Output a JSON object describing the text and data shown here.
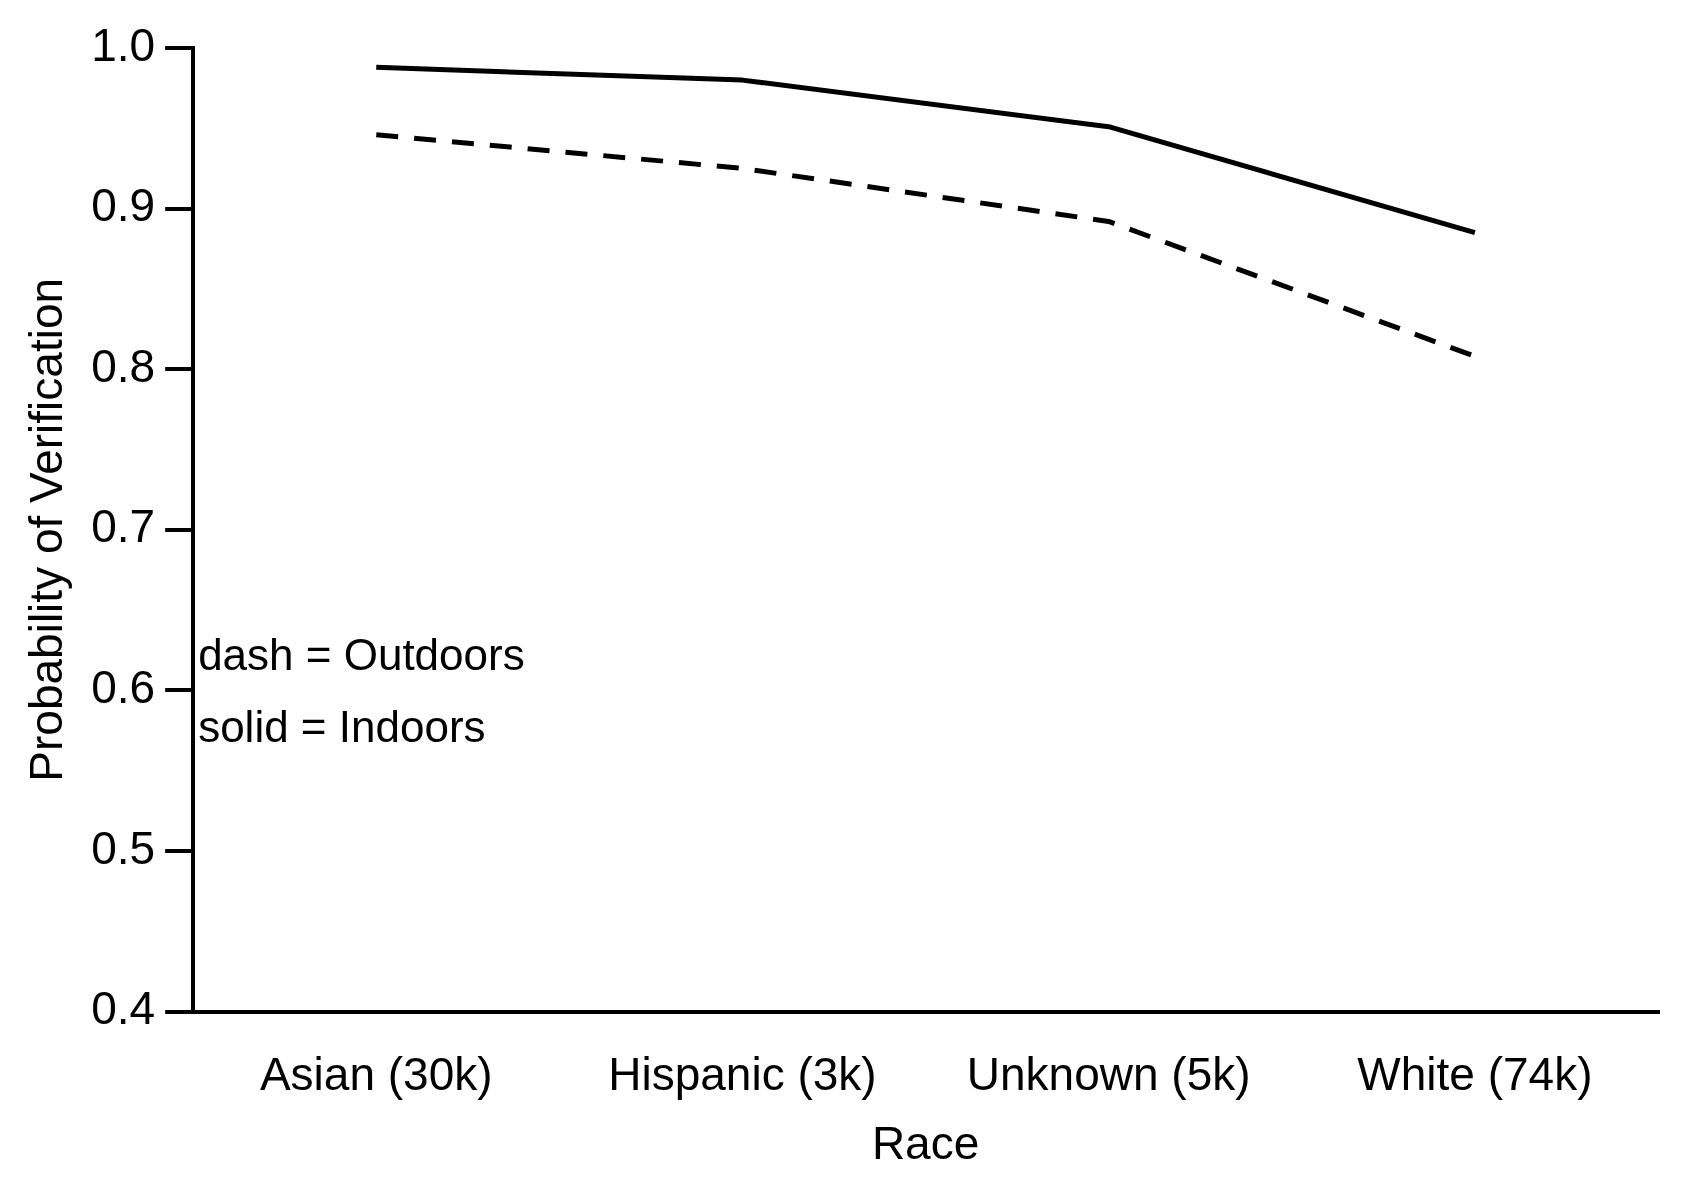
{
  "chart_data": {
    "type": "line",
    "xlabel": "Race",
    "ylabel": "Probability of Verification",
    "categories": [
      "Asian (30k)",
      "Hispanic (3k)",
      "Unknown (5k)",
      "White (74k)"
    ],
    "series": [
      {
        "color": "#000000",
        "line_style": "solid",
        "values": [
          0.988,
          0.98,
          0.951,
          0.885
        ]
      },
      {
        "color": "#000000",
        "line_style": "dashed",
        "values": [
          0.946,
          0.925,
          0.892,
          0.808
        ]
      }
    ],
    "ylim": [
      0.4,
      1.0
    ],
    "yticks": [
      {
        "value": 0.4,
        "label": "0.4"
      },
      {
        "value": 0.5,
        "label": "0.5"
      },
      {
        "value": 0.6,
        "label": "0.6"
      },
      {
        "value": 0.7,
        "label": "0.7"
      },
      {
        "value": 0.8,
        "label": "0.8"
      },
      {
        "value": 0.9,
        "label": "0.9"
      },
      {
        "value": 1.0,
        "label": "1.0"
      }
    ],
    "grid": false,
    "legend": false,
    "marker": "none",
    "annotations": [
      "dash = Outdoors",
      "solid = Indoors"
    ]
  }
}
